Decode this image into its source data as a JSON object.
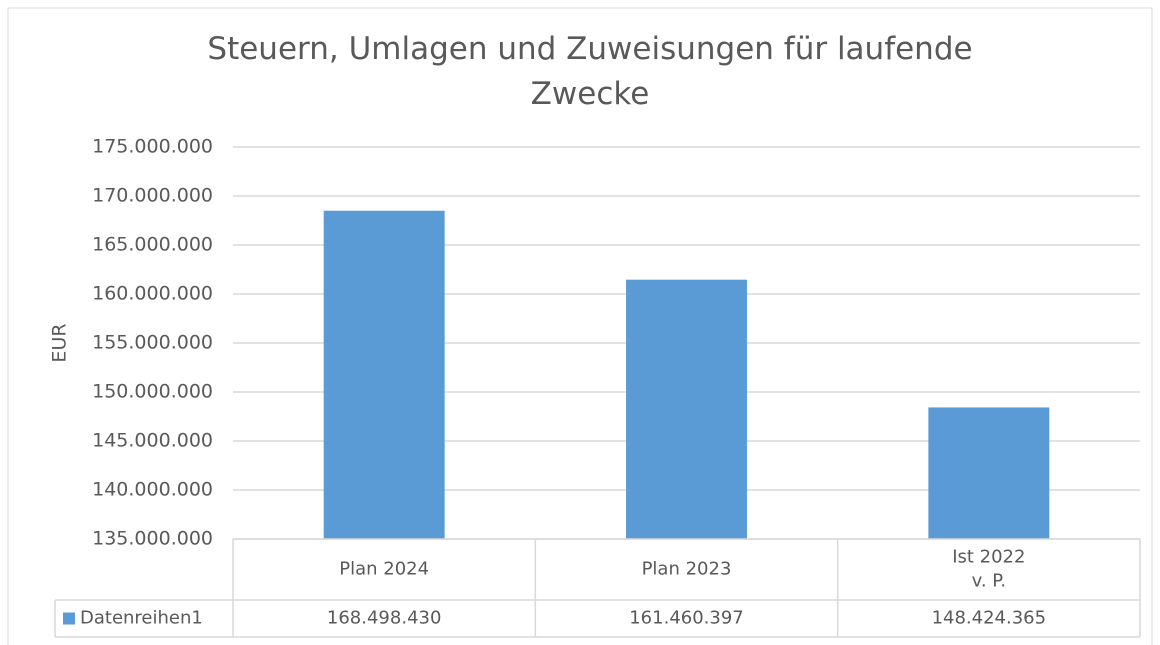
{
  "chart_data": {
    "type": "bar",
    "title": "Steuern, Umlagen und Zuweisungen für laufende Zwecke",
    "y_label": "EUR",
    "categories": [
      "Plan 2024",
      "Plan 2023",
      "Ist 2022\nv. P."
    ],
    "series": [
      {
        "name": "Datenreihen1",
        "color": "#5b9bd5",
        "values": [
          168498430,
          161460397,
          148424365
        ],
        "value_labels": [
          "168.498.430",
          "161.460.397",
          "148.424.365"
        ]
      }
    ],
    "ylim": [
      135000000,
      175000000
    ],
    "yticks": [
      {
        "value": 135000000,
        "label": "135.000.000"
      },
      {
        "value": 140000000,
        "label": "140.000.000"
      },
      {
        "value": 145000000,
        "label": "145.000.000"
      },
      {
        "value": 150000000,
        "label": "150.000.000"
      },
      {
        "value": 155000000,
        "label": "155.000.000"
      },
      {
        "value": 160000000,
        "label": "160.000.000"
      },
      {
        "value": 165000000,
        "label": "165.000.000"
      },
      {
        "value": 170000000,
        "label": "170.000.000"
      },
      {
        "value": 175000000,
        "label": "175.000.000"
      }
    ],
    "grid": true,
    "data_table": true
  }
}
